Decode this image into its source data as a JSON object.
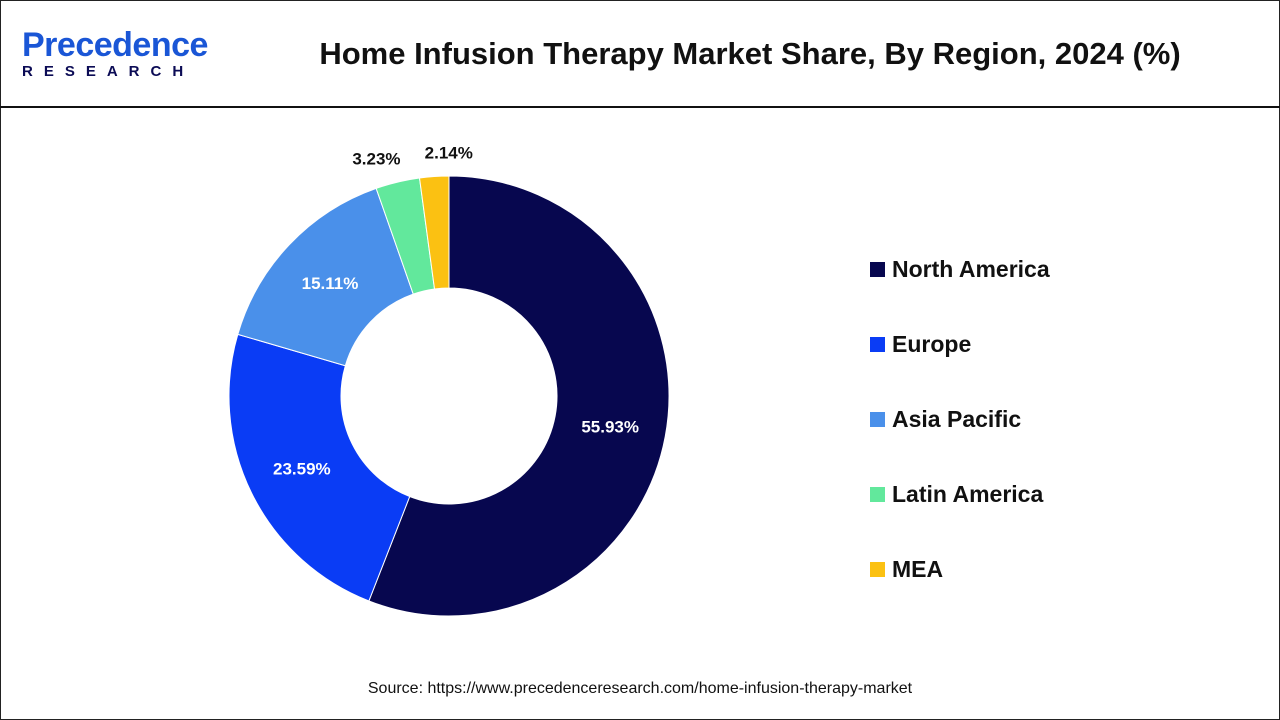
{
  "logo": {
    "top": "Precedence",
    "bottom": "RESEARCH"
  },
  "title": "Home Infusion Therapy Market Share, By Region, 2024 (%)",
  "source": "Source: https://www.precedenceresearch.com/home-infusion-therapy-market",
  "chart_data": {
    "type": "pie",
    "variant": "donut",
    "title": "Home Infusion Therapy Market Share, By Region, 2024 (%)",
    "categories": [
      "North America",
      "Europe",
      "Asia Pacific",
      "Latin America",
      "MEA"
    ],
    "values": [
      55.93,
      23.59,
      15.11,
      3.23,
      2.14
    ],
    "labels": [
      "55.93%",
      "23.59%",
      "15.11%",
      "3.23%",
      "2.14%"
    ],
    "colors": [
      "#07074f",
      "#0a3cf5",
      "#4a90ea",
      "#62e89c",
      "#fbc112"
    ],
    "legend_placement": "right",
    "start_angle": "top, clockwise"
  }
}
